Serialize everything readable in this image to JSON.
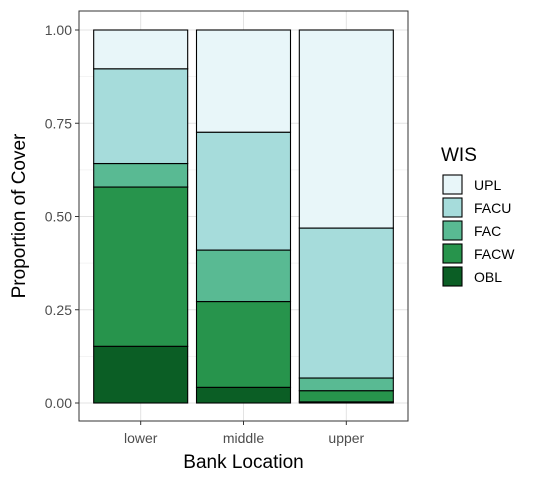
{
  "chart_data": {
    "type": "bar",
    "stacked": true,
    "normalized": true,
    "categories": [
      "lower",
      "middle",
      "upper"
    ],
    "xlabel": "Bank Location",
    "ylabel": "Proportion of Cover",
    "ylim": [
      0,
      1
    ],
    "yticks": [
      "0.00",
      "0.25",
      "0.50",
      "0.75",
      "1.00"
    ],
    "ytick_values": [
      0,
      0.25,
      0.5,
      0.75,
      1
    ],
    "grid": true,
    "legend": {
      "title": "WIS",
      "position": "right"
    },
    "series": [
      {
        "name": "OBL",
        "color": "#0b5e25",
        "values": [
          0.152,
          0.042,
          0.003
        ]
      },
      {
        "name": "FACW",
        "color": "#27944c",
        "values": [
          0.427,
          0.23,
          0.03
        ]
      },
      {
        "name": "FAC",
        "color": "#59ba93",
        "values": [
          0.063,
          0.138,
          0.034
        ]
      },
      {
        "name": "FACU",
        "color": "#a6dcdb",
        "values": [
          0.254,
          0.316,
          0.402
        ]
      },
      {
        "name": "UPL",
        "color": "#e8f6f9",
        "values": [
          0.104,
          0.274,
          0.531
        ]
      }
    ],
    "legend_order": [
      "UPL",
      "FACU",
      "FAC",
      "FACW",
      "OBL"
    ]
  }
}
